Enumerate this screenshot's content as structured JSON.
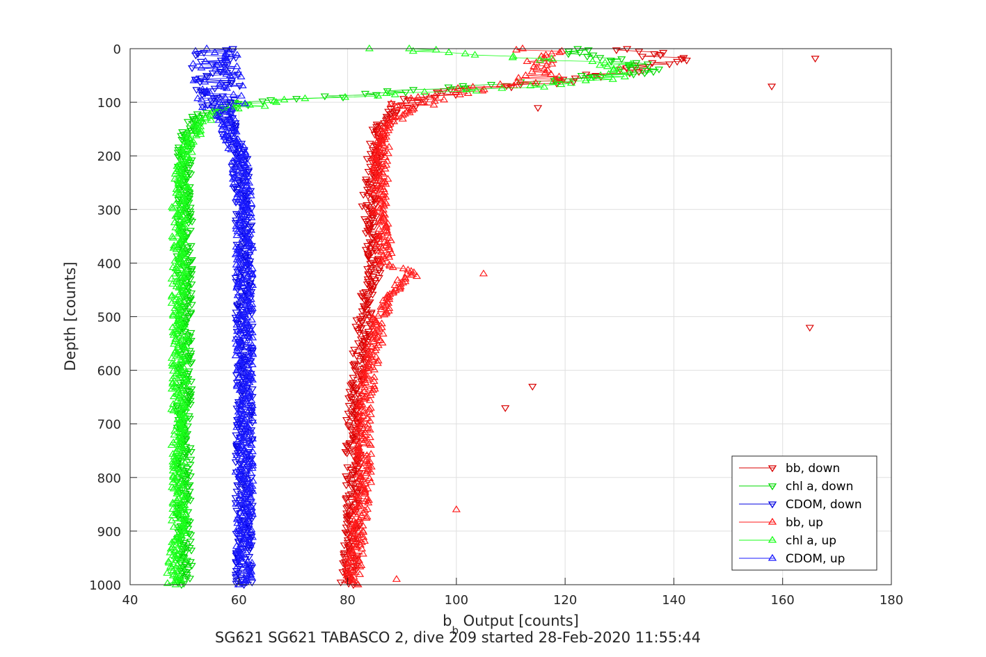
{
  "chart_data": {
    "type": "scatter",
    "xlabel_main": "b",
    "xlabel_sub": "b",
    "xlabel_rest": " Output [counts]",
    "ylabel": "Depth [counts]",
    "caption": "SG621 SG621 TABASCO 2, dive 209 started 28-Feb-2020 11:55:44",
    "xlim": [
      40,
      180
    ],
    "ylim": [
      0,
      1000
    ],
    "y_reversed": true,
    "grid": true,
    "legend_position": "bottom-right",
    "xticks": [
      "40",
      "60",
      "80",
      "100",
      "120",
      "140",
      "160",
      "180"
    ],
    "yticks": [
      "0",
      "100",
      "200",
      "300",
      "400",
      "500",
      "600",
      "700",
      "800",
      "900",
      "1000"
    ],
    "series": [
      {
        "name": "bb, down",
        "marker": "triangle-down",
        "color": "#d90000",
        "profile": [
          [
            0,
            130
          ],
          [
            20,
            140
          ],
          [
            40,
            132
          ],
          [
            60,
            120
          ],
          [
            80,
            98
          ],
          [
            100,
            90
          ],
          [
            150,
            86
          ],
          [
            200,
            85
          ],
          [
            300,
            84
          ],
          [
            400,
            85
          ],
          [
            450,
            84
          ],
          [
            500,
            83
          ],
          [
            600,
            82
          ],
          [
            700,
            81
          ],
          [
            800,
            81
          ],
          [
            900,
            81
          ],
          [
            1000,
            80
          ]
        ],
        "outliers": [
          [
            18,
            166
          ],
          [
            70,
            158
          ],
          [
            520,
            165
          ],
          [
            630,
            114
          ],
          [
            670,
            109
          ],
          [
            110,
            115
          ]
        ]
      },
      {
        "name": "chl a, down",
        "marker": "triangle-down",
        "color": "#00d900",
        "profile": [
          [
            0,
            120
          ],
          [
            20,
            128
          ],
          [
            40,
            135
          ],
          [
            60,
            118
          ],
          [
            80,
            90
          ],
          [
            100,
            62
          ],
          [
            120,
            53
          ],
          [
            150,
            51
          ],
          [
            200,
            50
          ],
          [
            300,
            50
          ],
          [
            400,
            50
          ],
          [
            500,
            50
          ],
          [
            600,
            50
          ],
          [
            700,
            50
          ],
          [
            800,
            50
          ],
          [
            900,
            50
          ],
          [
            1000,
            50
          ]
        ],
        "outliers": []
      },
      {
        "name": "CDOM, down",
        "marker": "triangle-down",
        "color": "#0000e0",
        "profile": [
          [
            0,
            55
          ],
          [
            50,
            56
          ],
          [
            100,
            57
          ],
          [
            150,
            58
          ],
          [
            200,
            60
          ],
          [
            300,
            61
          ],
          [
            400,
            61
          ],
          [
            500,
            61
          ],
          [
            600,
            61
          ],
          [
            700,
            61
          ],
          [
            800,
            61
          ],
          [
            900,
            61
          ],
          [
            1000,
            61
          ]
        ],
        "outliers": []
      },
      {
        "name": "bb, up",
        "marker": "triangle-up",
        "color": "#ff1a1a",
        "profile": [
          [
            0,
            115
          ],
          [
            30,
            118
          ],
          [
            60,
            115
          ],
          [
            80,
            100
          ],
          [
            100,
            92
          ],
          [
            150,
            87
          ],
          [
            200,
            86
          ],
          [
            300,
            86
          ],
          [
            400,
            87
          ],
          [
            420,
            92
          ],
          [
            450,
            88
          ],
          [
            500,
            86
          ],
          [
            600,
            84
          ],
          [
            700,
            83
          ],
          [
            800,
            83
          ],
          [
            900,
            82
          ],
          [
            1000,
            81
          ]
        ],
        "outliers": [
          [
            420,
            105
          ],
          [
            860,
            100
          ],
          [
            990,
            89
          ]
        ]
      },
      {
        "name": "chl a, up",
        "marker": "triangle-up",
        "color": "#1aff1a",
        "profile": [
          [
            0,
            90
          ],
          [
            10,
            100
          ],
          [
            30,
            130
          ],
          [
            50,
            130
          ],
          [
            70,
            115
          ],
          [
            90,
            80
          ],
          [
            100,
            65
          ],
          [
            120,
            55
          ],
          [
            150,
            52
          ],
          [
            200,
            50
          ],
          [
            300,
            49
          ],
          [
            400,
            49
          ],
          [
            500,
            49
          ],
          [
            600,
            49
          ],
          [
            700,
            49
          ],
          [
            800,
            49
          ],
          [
            900,
            49
          ],
          [
            1000,
            48
          ]
        ],
        "outliers": [
          [
            0,
            84
          ]
        ]
      },
      {
        "name": "CDOM, up",
        "marker": "triangle-up",
        "color": "#1a1aff",
        "profile": [
          [
            0,
            55
          ],
          [
            50,
            56
          ],
          [
            100,
            57
          ],
          [
            150,
            58
          ],
          [
            200,
            60
          ],
          [
            300,
            61
          ],
          [
            400,
            61
          ],
          [
            500,
            61
          ],
          [
            600,
            61
          ],
          [
            700,
            61
          ],
          [
            800,
            61
          ],
          [
            900,
            61
          ],
          [
            1000,
            61
          ]
        ],
        "outliers": []
      }
    ]
  }
}
